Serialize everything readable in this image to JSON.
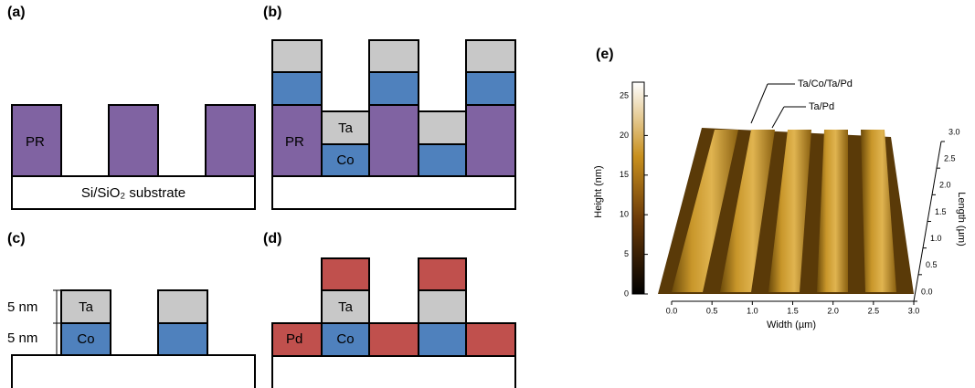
{
  "panels": {
    "a": {
      "label": "(a)",
      "pr": "PR",
      "substrate": "Si/SiO₂ substrate"
    },
    "b": {
      "label": "(b)",
      "pr": "PR",
      "ta": "Ta",
      "co": "Co"
    },
    "c": {
      "label": "(c)",
      "thickness_ta": "5 nm",
      "thickness_co": "5 nm",
      "ta": "Ta",
      "co": "Co"
    },
    "d": {
      "label": "(d)",
      "pd": "Pd",
      "ta": "Ta",
      "co": "Co"
    },
    "e": {
      "label": "(e)",
      "annotations": [
        "Ta/Co/Ta/Pd",
        "Ta/Pd"
      ],
      "colorbar": {
        "title": "Height (nm)",
        "ticks": [
          "0",
          "5",
          "10",
          "15",
          "20",
          "25"
        ]
      },
      "x_axis": {
        "title": "Width (µm)",
        "ticks": [
          "0.0",
          "0.5",
          "1.0",
          "1.5",
          "2.0",
          "2.5",
          "3.0"
        ]
      },
      "y_axis": {
        "title": "Length (µm)",
        "ticks": [
          "0.0",
          "0.5",
          "1.0",
          "1.5",
          "2.0",
          "2.5",
          "3.0"
        ]
      }
    }
  }
}
